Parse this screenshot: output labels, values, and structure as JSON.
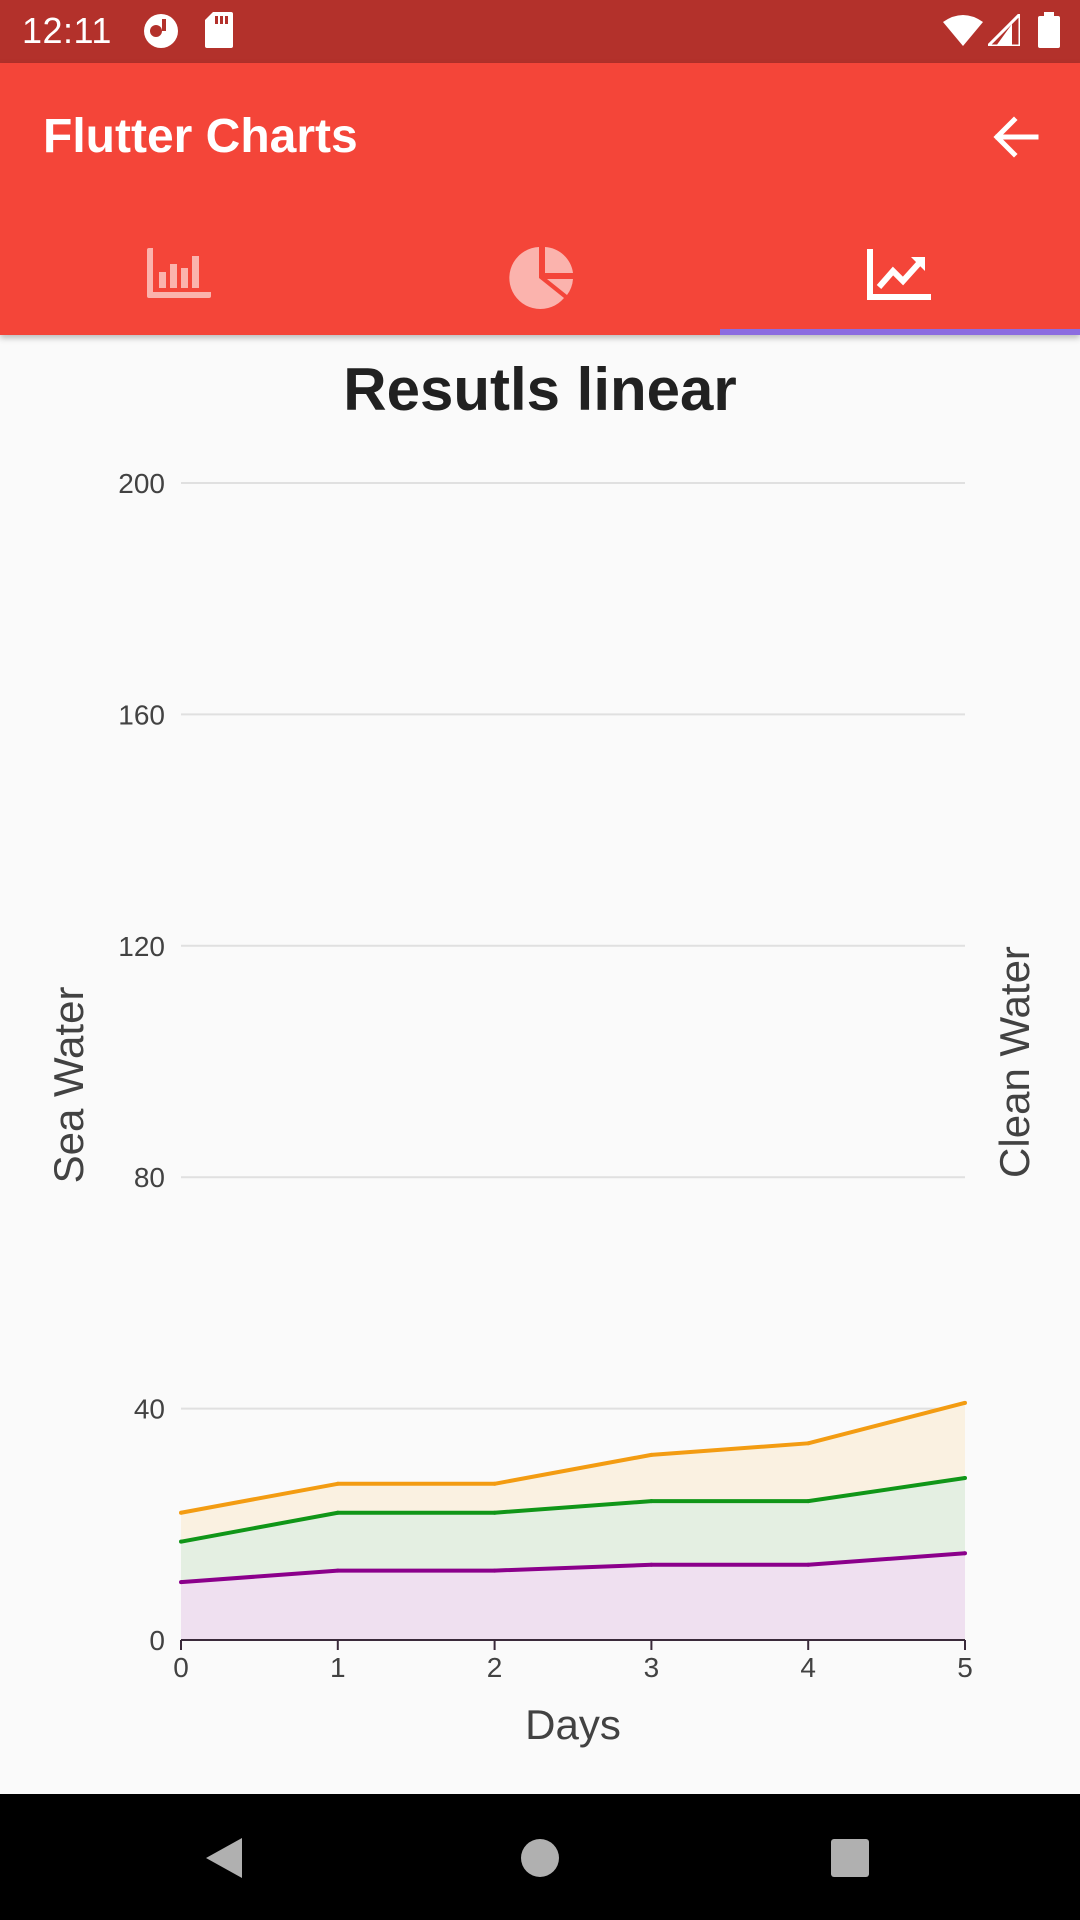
{
  "status_bar": {
    "time": "12:11",
    "icons": [
      "notification-app-icon",
      "sd-card-icon",
      "wifi-icon",
      "signal-icon",
      "battery-icon"
    ]
  },
  "app_bar": {
    "title": "Flutter Charts",
    "back_icon": "arrow-back-icon",
    "background_color": "#f44539",
    "tabs": [
      {
        "icon": "bar-chart-icon",
        "selected": false
      },
      {
        "icon": "pie-chart-icon",
        "selected": false
      },
      {
        "icon": "line-chart-icon",
        "selected": true
      }
    ]
  },
  "chart_data": {
    "type": "area",
    "title": "Resutls linear",
    "xlabel": "Days",
    "ylabel": "Sea Water",
    "secondary_ylabel": "Clean Water",
    "x": [
      0,
      1,
      2,
      3,
      4,
      5
    ],
    "xticks": [
      "0",
      "1",
      "2",
      "3",
      "4",
      "5"
    ],
    "yticks": [
      "0",
      "40",
      "80",
      "120",
      "160",
      "200"
    ],
    "ylim": [
      0,
      200
    ],
    "grid": true,
    "stacked": true,
    "series": [
      {
        "color": "#8b008b",
        "fill": "#efe0f0",
        "values": [
          10,
          12,
          12,
          13,
          13,
          15
        ]
      },
      {
        "color": "#109618",
        "fill": "#e4efe2",
        "values": [
          17,
          22,
          22,
          24,
          24,
          28
        ]
      },
      {
        "color": "#f39c12",
        "fill": "#faf1e1",
        "values": [
          22,
          27,
          27,
          32,
          34,
          41
        ]
      }
    ]
  },
  "nav_bar": {
    "buttons": [
      "back-nav-icon",
      "home-nav-icon",
      "recents-nav-icon"
    ]
  }
}
